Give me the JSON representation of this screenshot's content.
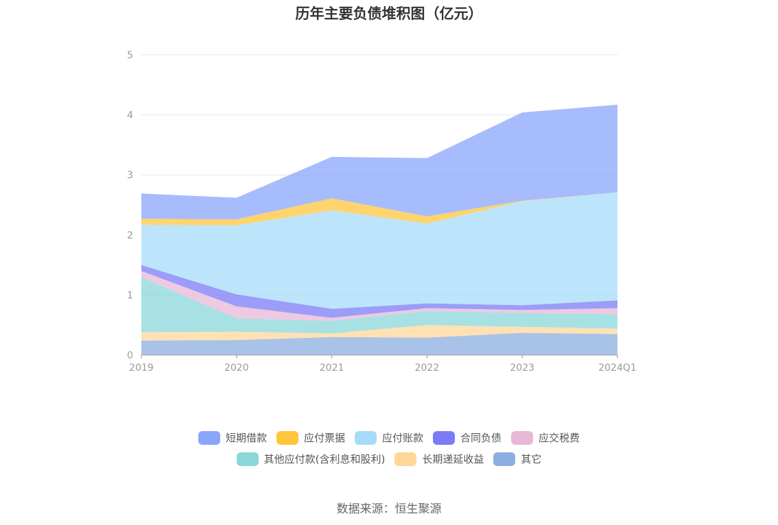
{
  "chart_data": {
    "type": "area",
    "stacked": true,
    "title": "历年主要负债堆积图（亿元）",
    "categories": [
      "2019",
      "2020",
      "2021",
      "2022",
      "2023",
      "2024Q1"
    ],
    "ylim": [
      0,
      5
    ],
    "yticks": [
      "0",
      "1",
      "2",
      "3",
      "4",
      "5"
    ],
    "grid": true,
    "legend_position": "bottom",
    "series": [
      {
        "name": "其它",
        "color": "#8caee0",
        "values": [
          0.24,
          0.25,
          0.3,
          0.29,
          0.37,
          0.35
        ]
      },
      {
        "name": "长期递延收益",
        "color": "#ffd799",
        "values": [
          0.14,
          0.14,
          0.06,
          0.21,
          0.1,
          0.09
        ]
      },
      {
        "name": "其他应付款(含利息和股利)",
        "color": "#8ad7d9",
        "values": [
          0.92,
          0.22,
          0.21,
          0.23,
          0.23,
          0.24
        ]
      },
      {
        "name": "应交税费",
        "color": "#e8b7d8",
        "values": [
          0.1,
          0.2,
          0.05,
          0.05,
          0.05,
          0.1
        ]
      },
      {
        "name": "合同负债",
        "color": "#7b7cf5",
        "values": [
          0.1,
          0.2,
          0.15,
          0.08,
          0.08,
          0.13
        ]
      },
      {
        "name": "应付账款",
        "color": "#a6dcfa",
        "values": [
          0.67,
          1.15,
          1.64,
          1.33,
          1.73,
          1.8
        ]
      },
      {
        "name": "应付票据",
        "color": "#fdc63b",
        "values": [
          0.1,
          0.1,
          0.2,
          0.12,
          0.01,
          0.0
        ]
      },
      {
        "name": "短期借款",
        "color": "#8aa6fb",
        "values": [
          0.42,
          0.36,
          0.69,
          0.97,
          1.47,
          1.46
        ]
      }
    ]
  },
  "legend": {
    "row1": [
      "短期借款",
      "应付票据",
      "应付账款",
      "合同负债",
      "应交税费"
    ],
    "row2": [
      "其他应付款(含利息和股利)",
      "长期递延收益",
      "其它"
    ],
    "colors": {
      "短期借款": "#8aa6fb",
      "应付票据": "#fdc63b",
      "应付账款": "#a6dcfa",
      "合同负债": "#7b7cf5",
      "应交税费": "#e8b7d8",
      "其他应付款(含利息和股利)": "#8ad7d9",
      "长期递延收益": "#ffd799",
      "其它": "#8caee0"
    }
  },
  "source": "数据来源：恒生聚源"
}
